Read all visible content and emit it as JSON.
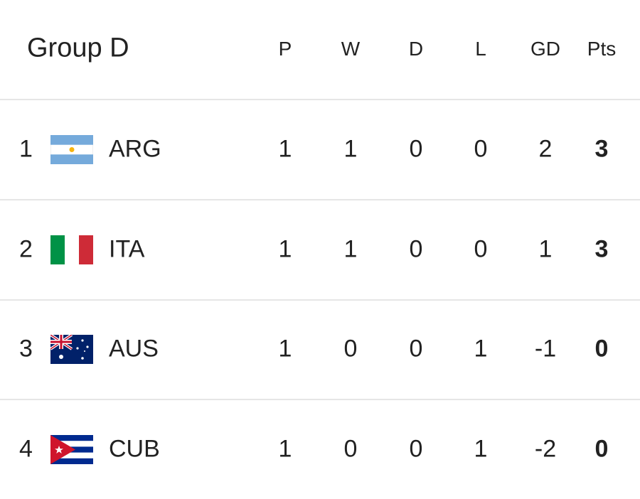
{
  "header": {
    "title": "Group D",
    "columns": [
      "P",
      "W",
      "D",
      "L",
      "GD",
      "Pts"
    ]
  },
  "table": {
    "rows": [
      {
        "rank": 1,
        "team": "ARG",
        "stats": [
          1,
          1,
          0,
          0,
          2,
          3
        ]
      },
      {
        "rank": 2,
        "team": "ITA",
        "stats": [
          1,
          1,
          0,
          0,
          1,
          3
        ]
      },
      {
        "rank": 3,
        "team": "AUS",
        "stats": [
          1,
          0,
          0,
          1,
          -1,
          0
        ]
      },
      {
        "rank": 4,
        "team": "CUB",
        "stats": [
          1,
          0,
          0,
          1,
          -2,
          0
        ]
      }
    ]
  }
}
